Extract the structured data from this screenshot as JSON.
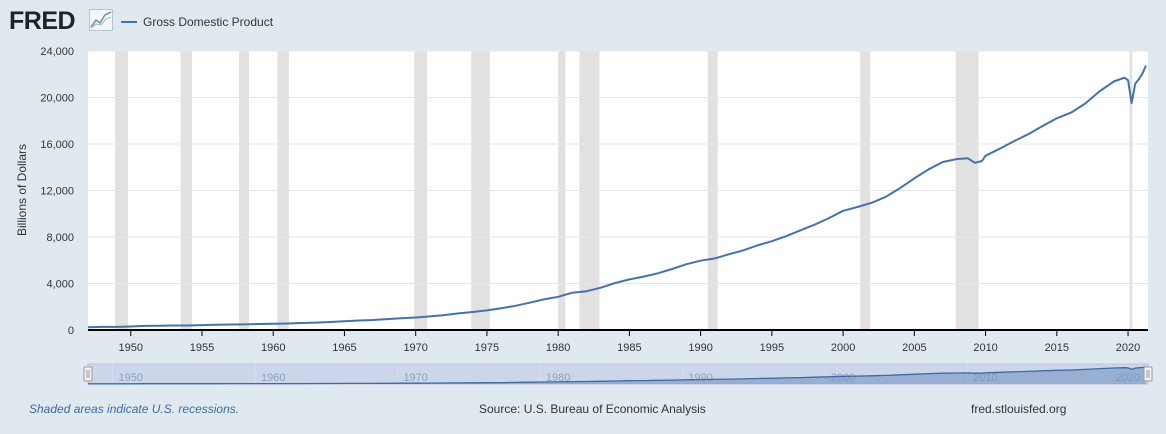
{
  "header": {
    "logo_text": "FRED",
    "legend_label": "Gross Domestic Product"
  },
  "colors": {
    "series": "#4572a7",
    "recession": "#e1e1e1",
    "navigator_fill": "#cbd6ea",
    "page_bg": "#e1e9f0"
  },
  "icons": {
    "logo_graph": "line-graph-icon",
    "navigator_handle_left": "drag-handle-icon",
    "navigator_handle_right": "drag-handle-icon"
  },
  "footer": {
    "note": "Shaded areas indicate U.S. recessions.",
    "source": "Source: U.S. Bureau of Economic Analysis",
    "site": "fred.stlouisfed.org"
  },
  "chart_data": {
    "type": "line",
    "title": "",
    "xlabel": "",
    "ylabel": "Billions of Dollars",
    "xlim": [
      1947.0,
      2021.4
    ],
    "ylim": [
      0,
      24000
    ],
    "y_ticks": [
      "0",
      "4,000",
      "8,000",
      "12,000",
      "16,000",
      "20,000",
      "24,000"
    ],
    "y_tick_values": [
      0,
      4000,
      8000,
      12000,
      16000,
      20000,
      24000
    ],
    "x_ticks": [
      "1950",
      "1955",
      "1960",
      "1965",
      "1970",
      "1975",
      "1980",
      "1985",
      "1990",
      "1995",
      "2000",
      "2005",
      "2010",
      "2015",
      "2020"
    ],
    "x_tick_values": [
      1950,
      1955,
      1960,
      1965,
      1970,
      1975,
      1980,
      1985,
      1990,
      1995,
      2000,
      2005,
      2010,
      2015,
      2020
    ],
    "navigator_ticks": [
      "1950",
      "1960",
      "1970",
      "1980",
      "1990",
      "2000",
      "2010",
      "2020"
    ],
    "navigator_tick_values": [
      1950,
      1960,
      1970,
      1980,
      1990,
      2000,
      2010,
      2020
    ],
    "grid": true,
    "legend": "top-left",
    "recessions": [
      [
        1948.9,
        1949.8
      ],
      [
        1953.5,
        1954.3
      ],
      [
        1957.6,
        1958.3
      ],
      [
        1960.3,
        1961.1
      ],
      [
        1969.9,
        1970.8
      ],
      [
        1973.9,
        1975.2
      ],
      [
        1980.0,
        1980.5
      ],
      [
        1981.5,
        1982.9
      ],
      [
        1990.5,
        1991.2
      ],
      [
        2001.2,
        2001.9
      ],
      [
        2007.9,
        2009.5
      ],
      [
        2020.1,
        2020.3
      ]
    ],
    "series": [
      {
        "name": "Gross Domestic Product",
        "x": [
          1947,
          1948,
          1949,
          1950,
          1951,
          1952,
          1953,
          1954,
          1955,
          1956,
          1957,
          1958,
          1959,
          1960,
          1961,
          1962,
          1963,
          1964,
          1965,
          1966,
          1967,
          1968,
          1969,
          1970,
          1971,
          1972,
          1973,
          1974,
          1975,
          1976,
          1977,
          1978,
          1979,
          1980,
          1981,
          1982,
          1983,
          1984,
          1985,
          1986,
          1987,
          1988,
          1989,
          1990,
          1991,
          1992,
          1993,
          1994,
          1995,
          1996,
          1997,
          1998,
          1999,
          2000,
          2001,
          2002,
          2003,
          2004,
          2005,
          2006,
          2007,
          2008,
          2008.75,
          2009.25,
          2009.75,
          2010,
          2011,
          2012,
          2013,
          2014,
          2015,
          2016,
          2017,
          2018,
          2019,
          2019.75,
          2020.0,
          2020.25,
          2020.5,
          2020.75,
          2021.0,
          2021.25
        ],
        "values": [
          245,
          270,
          270,
          300,
          350,
          370,
          390,
          390,
          425,
          450,
          475,
          480,
          520,
          540,
          560,
          600,
          640,
          685,
          745,
          815,
          860,
          940,
          1015,
          1075,
          1170,
          1280,
          1425,
          1545,
          1685,
          1875,
          2080,
          2350,
          2630,
          2860,
          3210,
          3340,
          3640,
          4040,
          4350,
          4590,
          4880,
          5250,
          5660,
          5960,
          6160,
          6520,
          6860,
          7290,
          7640,
          8070,
          8580,
          9060,
          9630,
          10250,
          10580,
          10940,
          11460,
          12210,
          13040,
          13820,
          14450,
          14710,
          14770,
          14380,
          14540,
          14990,
          15600,
          16250,
          16840,
          17550,
          18210,
          18700,
          19480,
          20530,
          21380,
          21700,
          21480,
          19520,
          21170,
          21560,
          22040,
          22740
        ]
      }
    ]
  }
}
